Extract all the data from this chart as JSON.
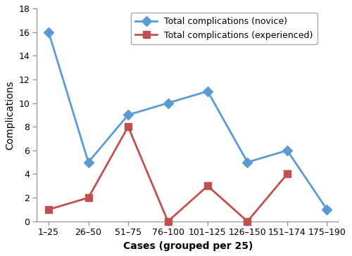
{
  "x_labels": [
    "1–25",
    "26–50",
    "51–75",
    "76–100",
    "101–125",
    "126–150",
    "151–174",
    "175–190"
  ],
  "novice_values": [
    16,
    5,
    9,
    10,
    11,
    5,
    6,
    1
  ],
  "experienced_values": [
    1,
    2,
    8,
    0,
    3,
    0,
    4,
    null
  ],
  "novice_color": "#5b9bd5",
  "experienced_color": "#c0504d",
  "novice_label": "Total complications (novice)",
  "experienced_label": "Total complications (experienced)",
  "xlabel": "Cases (grouped per 25)",
  "ylabel": "Complications",
  "ylim": [
    0,
    18
  ],
  "yticks": [
    0,
    2,
    4,
    6,
    8,
    10,
    12,
    14,
    16,
    18
  ],
  "marker_size": 7,
  "line_width": 2.0,
  "background_color": "#ffffff",
  "spine_color": "#888888"
}
